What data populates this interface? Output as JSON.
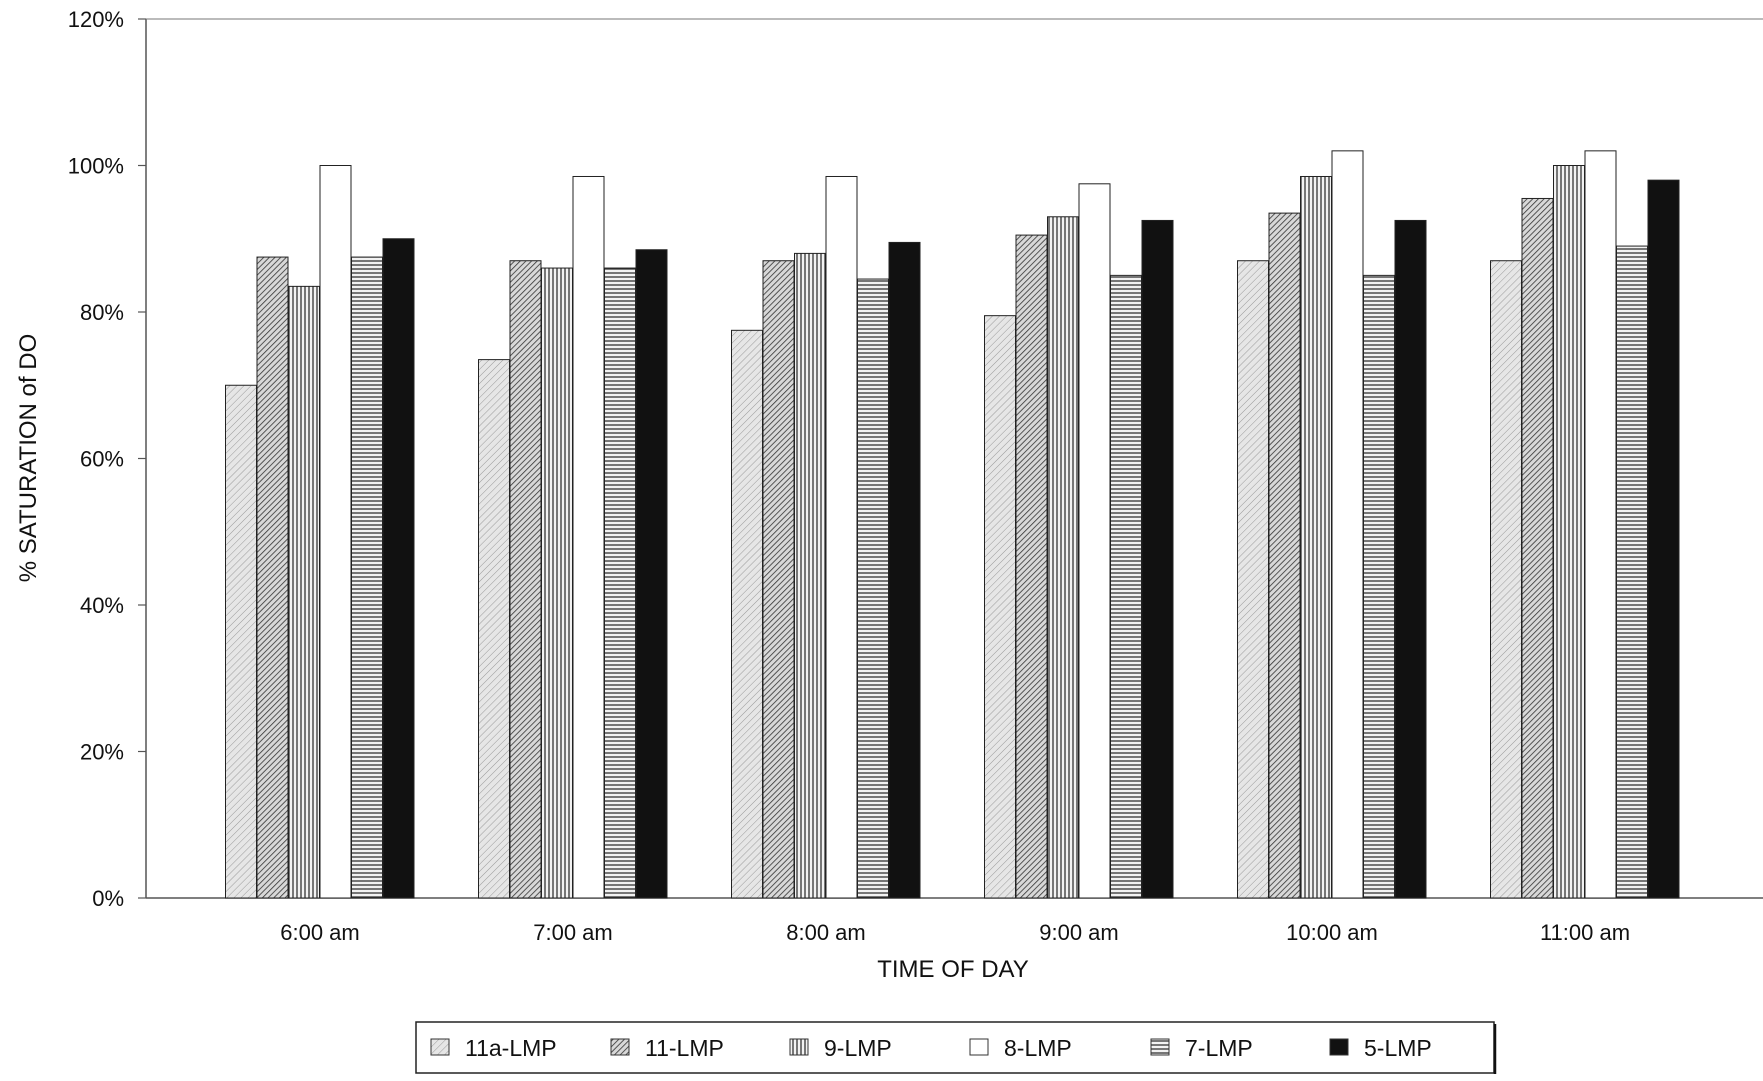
{
  "chart_data": {
    "type": "bar",
    "title": "",
    "xlabel": "TIME OF DAY",
    "ylabel": "% SATURATION of DO",
    "ylim": [
      0,
      1.2
    ],
    "yticks": [
      {
        "value": 0,
        "label": "0%"
      },
      {
        "value": 0.2,
        "label": "20%"
      },
      {
        "value": 0.4,
        "label": "40%"
      },
      {
        "value": 0.6,
        "label": "60%"
      },
      {
        "value": 0.8,
        "label": "80%"
      },
      {
        "value": 1.0,
        "label": "100%"
      },
      {
        "value": 1.2,
        "label": "120%"
      }
    ],
    "categories": [
      "6:00 am",
      "7:00 am",
      "8:00 am",
      "9:00 am",
      "10:00 am",
      "11:00 am"
    ],
    "series": [
      {
        "name": "11a-LMP",
        "pattern": "light-stipple-diagonal",
        "values": [
          0.7,
          0.735,
          0.775,
          0.795,
          0.87,
          0.87
        ]
      },
      {
        "name": "11-LMP",
        "pattern": "dense-diagonal-hatch",
        "values": [
          0.875,
          0.87,
          0.87,
          0.905,
          0.935,
          0.955
        ]
      },
      {
        "name": "9-LMP",
        "pattern": "vertical-lines",
        "values": [
          0.835,
          0.86,
          0.88,
          0.93,
          0.985,
          1.0
        ]
      },
      {
        "name": "8-LMP",
        "pattern": "white",
        "values": [
          1.0,
          0.985,
          0.985,
          0.975,
          1.02,
          1.02
        ]
      },
      {
        "name": "7-LMP",
        "pattern": "horizontal-lines",
        "values": [
          0.875,
          0.86,
          0.845,
          0.85,
          0.85,
          0.89
        ]
      },
      {
        "name": "5-LMP",
        "pattern": "solid-black",
        "values": [
          0.9,
          0.885,
          0.895,
          0.925,
          0.925,
          0.98
        ]
      }
    ],
    "grid": false,
    "legend_position": "bottom-center",
    "colors": {
      "axis": "#555555",
      "bar_outline": "#222222",
      "solid": "#111111",
      "hatch": "#333333",
      "background": "#ffffff"
    }
  }
}
